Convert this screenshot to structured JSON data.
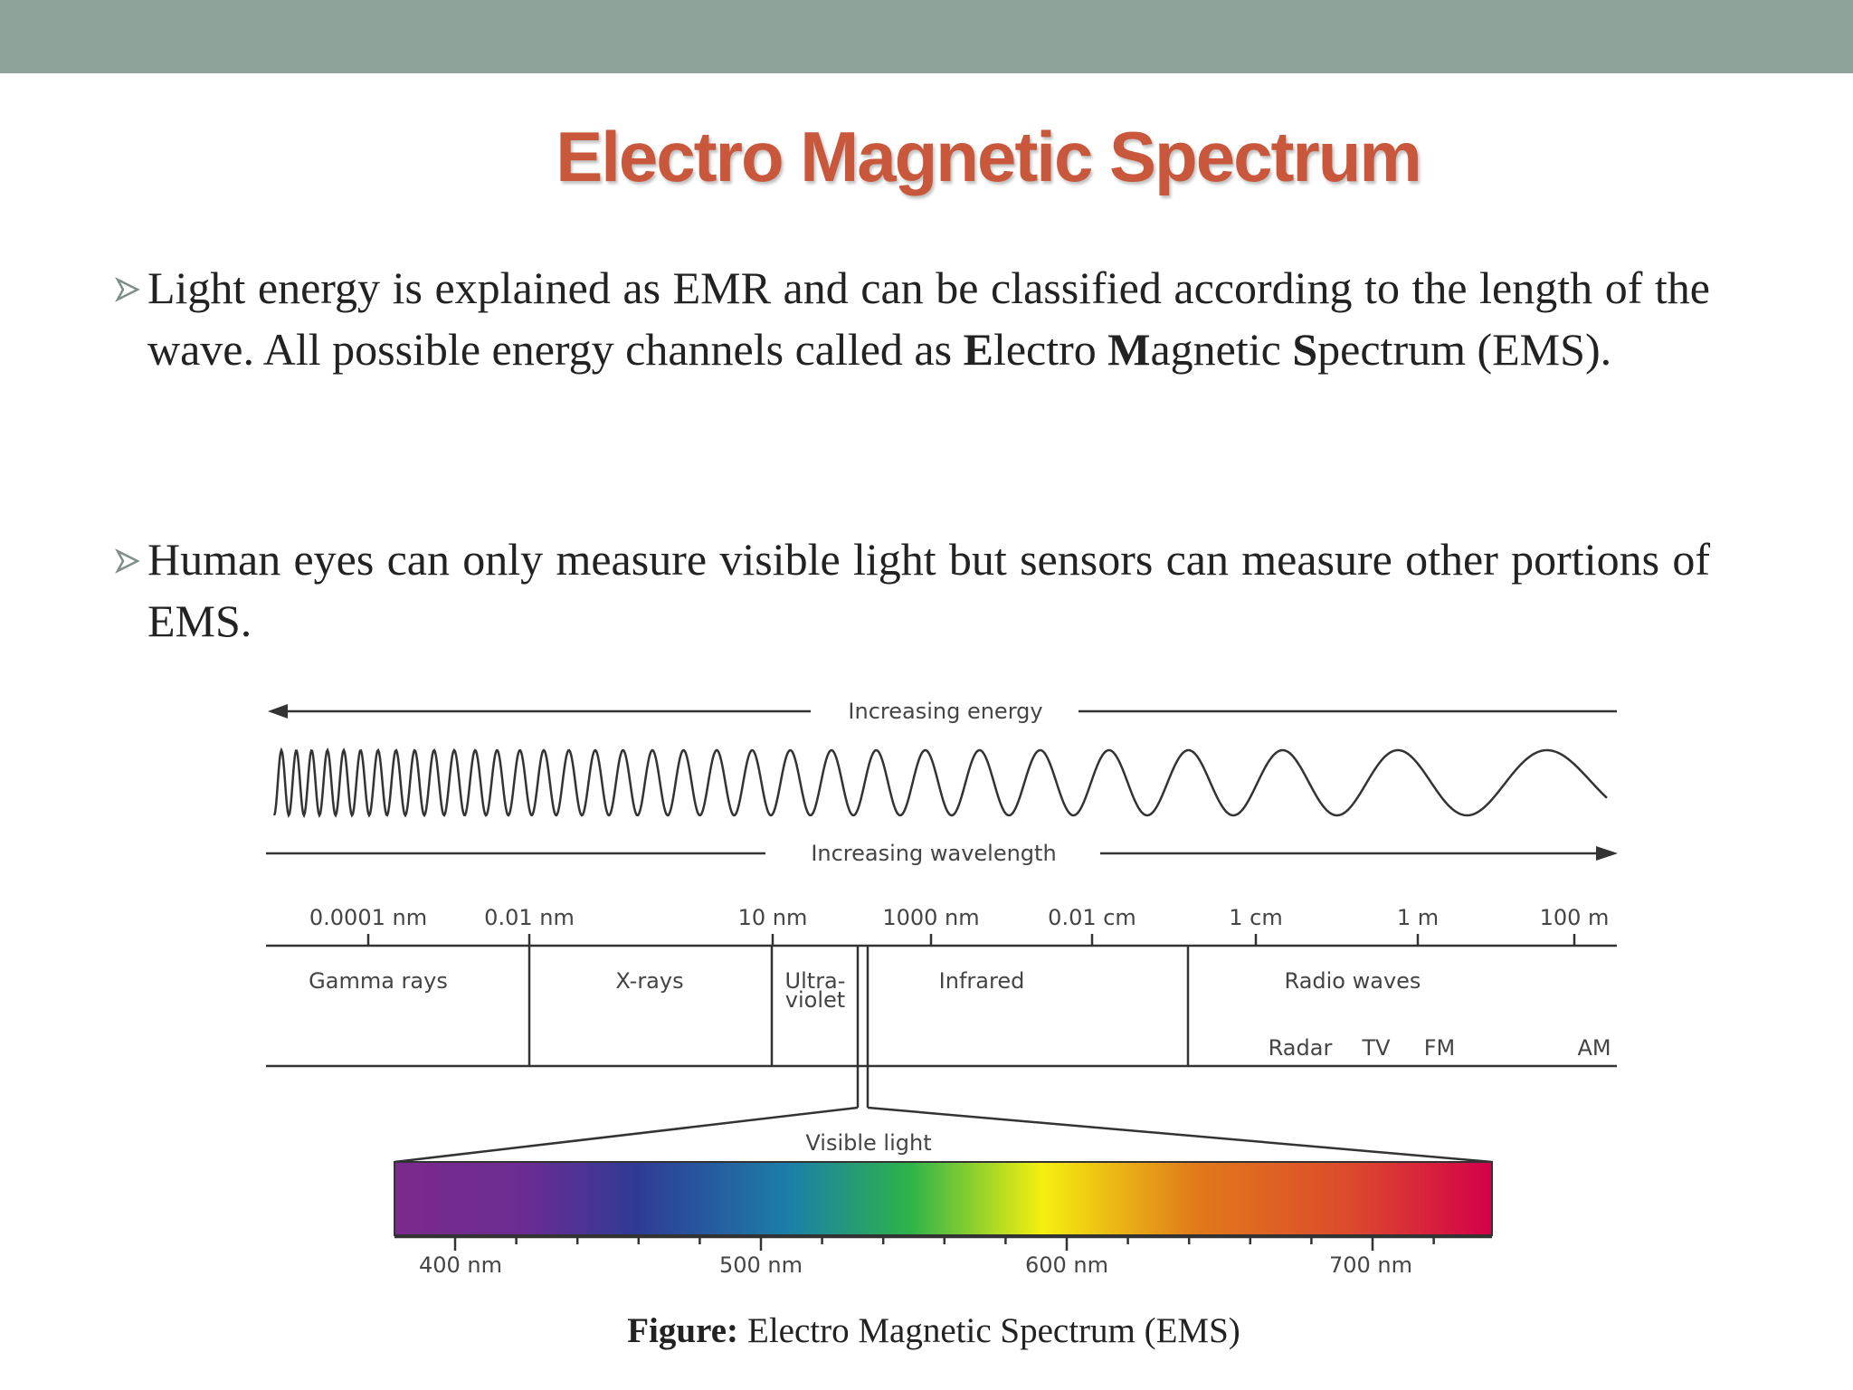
{
  "header": {
    "title": "Electro Magnetic Spectrum"
  },
  "bullets": [
    {
      "parts": [
        "Light energy is explained as EMR and can be classified according to the length of the wave. All possible energy channels called as ",
        "E",
        "lectro ",
        "M",
        "agnetic ",
        "S",
        "pectrum (EMS)."
      ]
    },
    {
      "parts": [
        "Human eyes can only measure visible light but sensors can measure other portions of EMS."
      ]
    }
  ],
  "figure": {
    "energy_label": "Increasing energy",
    "wavelength_label": "Increasing wavelength",
    "wavelength_scale": [
      "0.0001 nm",
      "0.01 nm",
      "10 nm",
      "1000 nm",
      "0.01 cm",
      "1 cm",
      "1 m",
      "100 m"
    ],
    "regions": [
      "Gamma rays",
      "X-rays",
      "Ultra-",
      "violet",
      "Infrared",
      "Radio waves"
    ],
    "radio_bands": [
      "Radar",
      "TV",
      "FM",
      "AM"
    ],
    "visible_label": "Visible light",
    "visible_scale": [
      "400 nm",
      "500 nm",
      "600 nm",
      "700 nm"
    ],
    "caption": {
      "label": "Figure:",
      "text": "Electro Magnetic Spectrum (EMS)"
    }
  }
}
